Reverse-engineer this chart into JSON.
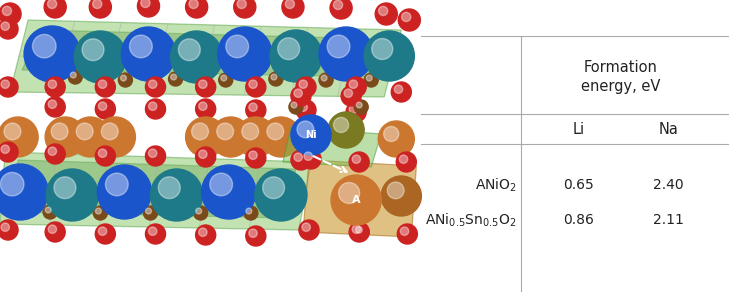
{
  "row1_li": "0.65",
  "row1_na": "2.40",
  "row2_li": "0.86",
  "row2_na": "2.11",
  "bg_color": "#ffffff",
  "text_color": "#222222",
  "fig_width": 7.29,
  "fig_height": 2.92,
  "dpi": 100,
  "blue1": "#1a55cc",
  "blue2": "#1e7a88",
  "orange": "#cc7730",
  "red": "#cc2222",
  "brown": "#7a4a1a",
  "olive": "#7a7a22",
  "green_face": "#7abf55",
  "green_edge": "#449933",
  "gold_face": "#cc9933",
  "gold_edge": "#aa7722"
}
